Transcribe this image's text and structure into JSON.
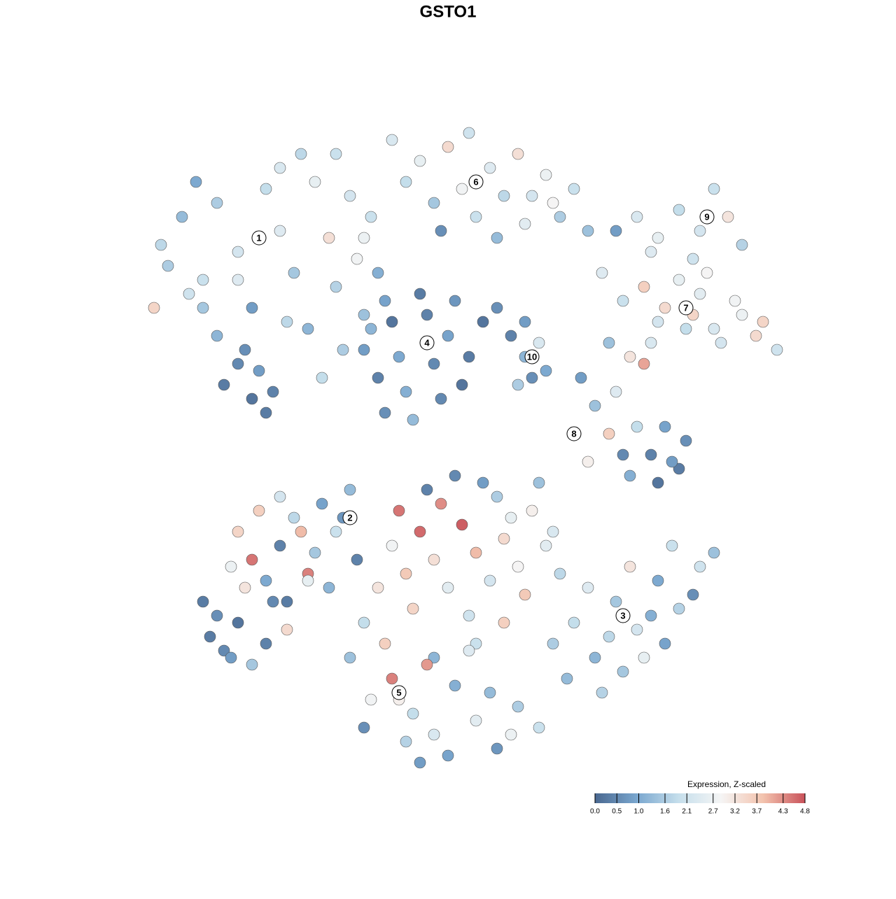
{
  "chart_data": {
    "type": "scatter",
    "title": "GSTO1",
    "colorbar_title": "Expression, Z-scaled",
    "colorscale": [
      "#4a6890",
      "#7aa7cf",
      "#c6dfec",
      "#f5f5f5",
      "#f3c3ae",
      "#c9525a"
    ],
    "clim": [
      0,
      4.8
    ],
    "cticks": [
      {
        "value": 0,
        "label": "0.0"
      },
      0.5,
      {
        "value": 1,
        "label": "1.0"
      },
      1.6,
      2.1,
      2.7,
      3.2,
      3.7,
      4.3,
      4.8
    ],
    "x": [
      -41,
      -38,
      -35,
      -33,
      -30,
      -28,
      -26,
      -24,
      -22,
      -20,
      -19,
      -17,
      -16,
      -14,
      -13,
      -12,
      -11,
      -10,
      -18,
      -15,
      -32,
      -30,
      -28,
      -27,
      -25,
      -33,
      -35,
      -29,
      -26,
      -23,
      -37,
      -40,
      -42,
      -36,
      -21,
      -24,
      -16,
      -12,
      -9,
      -30,
      -8,
      -6,
      -4,
      -2,
      0,
      2,
      4,
      6,
      8,
      10,
      12,
      14,
      16,
      18,
      20,
      -1,
      3,
      7,
      11,
      15,
      -12,
      -10,
      -8,
      -6,
      -4,
      -2,
      0,
      2,
      -9,
      -5,
      -3,
      1,
      -7,
      -11,
      3,
      -1,
      5,
      7,
      9,
      11,
      11,
      12,
      13,
      14,
      10,
      19,
      21,
      23,
      25,
      27,
      29,
      31,
      33,
      26,
      30,
      34,
      24,
      28,
      32,
      20,
      24,
      27,
      30,
      33,
      36,
      38,
      40,
      42,
      35,
      29,
      22,
      25,
      28,
      30,
      33,
      35,
      38,
      41,
      44,
      47,
      31,
      34,
      36,
      39,
      42,
      26,
      29,
      45,
      23,
      37,
      -30,
      -28,
      -26,
      -24,
      -22,
      -20,
      -18,
      -16,
      -14,
      -25,
      -31,
      -27,
      -23,
      -19,
      -15,
      -21,
      -29,
      -17,
      -13,
      -24,
      -34,
      -32,
      -30,
      -28,
      -26,
      -23,
      -33,
      -31,
      -35,
      -20,
      -8,
      -6,
      -4,
      -2,
      0,
      2,
      4,
      6,
      8,
      10,
      12,
      14,
      16,
      -5,
      -1,
      3,
      7,
      11,
      15,
      1,
      -3,
      5,
      9,
      -7,
      13,
      -10,
      -12,
      8,
      4,
      -2,
      15,
      18,
      21,
      24,
      27,
      30,
      33,
      36,
      38,
      17,
      20,
      23,
      26,
      29,
      32,
      35,
      25,
      31,
      22,
      28,
      -14,
      -11,
      -8,
      -5,
      -2,
      1,
      4,
      7,
      10,
      13,
      -12,
      -9,
      -6,
      -3,
      0,
      3,
      6,
      9,
      -7,
      -4
    ],
    "y": [
      29,
      33,
      24,
      35,
      28,
      20,
      37,
      31,
      25,
      17,
      38,
      30,
      23,
      36,
      27,
      19,
      33,
      25,
      10,
      14,
      9,
      12,
      7,
      11,
      8,
      16,
      20,
      14,
      5,
      18,
      22,
      26,
      20,
      38,
      42,
      40,
      42,
      30,
      21,
      24,
      44,
      38,
      41,
      35,
      43,
      37,
      33,
      40,
      36,
      42,
      36,
      39,
      33,
      37,
      31,
      31,
      45,
      30,
      32,
      35,
      14,
      10,
      18,
      8,
      22,
      12,
      16,
      9,
      5,
      4,
      19,
      21,
      13,
      17,
      13,
      7,
      18,
      20,
      16,
      18,
      13,
      10,
      15,
      11,
      9,
      10,
      6,
      2,
      -1,
      3,
      -1,
      3,
      -3,
      -4,
      -5,
      1,
      8,
      12,
      -2,
      -2,
      31,
      33,
      30,
      34,
      31,
      37,
      33,
      29,
      27,
      28,
      25,
      21,
      23,
      18,
      24,
      19,
      17,
      21,
      16,
      14,
      20,
      17,
      22,
      15,
      19,
      13,
      15,
      18,
      15,
      25,
      -12,
      -16,
      -19,
      -14,
      -10,
      -18,
      -8,
      -12,
      -6,
      -22,
      -17,
      -9,
      -22,
      -15,
      -10,
      -12,
      -20,
      -20,
      -16,
      -7,
      -27,
      -29,
      -25,
      -31,
      -28,
      -26,
      -24,
      -30,
      -22,
      -19,
      -14,
      -18,
      -12,
      -16,
      -20,
      -11,
      -15,
      -19,
      -13,
      -17,
      -9,
      -14,
      -18,
      -23,
      -8,
      -24,
      -7,
      -21,
      -12,
      -4,
      -6,
      -5,
      -10,
      -9,
      -5,
      -20,
      -25,
      -25,
      -28,
      -30,
      -28,
      -25,
      -30,
      -22,
      -26,
      -19,
      -23,
      -17,
      -15,
      -33,
      -20,
      -27,
      -17,
      -24,
      -14,
      -21,
      -32,
      -28,
      -35,
      -30,
      -30,
      -36,
      -33,
      -38,
      -41,
      -34,
      -39,
      -43,
      -37,
      -40,
      -40,
      -28,
      -42,
      -31,
      -44,
      -29,
      -35,
      -41,
      -36,
      -45
    ],
    "values": [
      1.8,
      1.3,
      2.0,
      1.6,
      2.2,
      0.8,
      1.9,
      2.4,
      1.5,
      1.2,
      2.6,
      3.3,
      1.7,
      2.2,
      2.8,
      1.4,
      2.0,
      1.1,
      1.9,
      1.6,
      0.3,
      0.5,
      0.2,
      0.8,
      0.4,
      1.2,
      1.5,
      0.6,
      0.3,
      1.8,
      2.1,
      1.6,
      3.5,
      1.0,
      1.8,
      2.3,
      2.0,
      2.7,
      0.9,
      2.4,
      2.3,
      1.9,
      2.6,
      1.5,
      3.4,
      2.8,
      2.0,
      2.4,
      1.8,
      3.3,
      2.2,
      2.7,
      1.6,
      2.0,
      1.4,
      0.6,
      2.1,
      1.3,
      2.5,
      2.9,
      0.8,
      0.4,
      0.2,
      1.1,
      0.3,
      0.5,
      0.9,
      0.2,
      0.6,
      1.3,
      0.4,
      0.7,
      1.0,
      1.2,
      0.3,
      0.5,
      0.2,
      0.6,
      0.4,
      0.8,
      1.2,
      0.6,
      2.3,
      1.0,
      1.6,
      0.8,
      1.4,
      3.6,
      0.5,
      1.9,
      0.4,
      0.9,
      0.3,
      1.1,
      0.2,
      0.6,
      2.4,
      4.1,
      0.8,
      3.0,
      0.8,
      2.3,
      2.6,
      1.9,
      2.2,
      2.0,
      3.2,
      1.7,
      2.1,
      2.4,
      2.4,
      2.0,
      3.6,
      2.2,
      2.6,
      3.5,
      2.3,
      2.8,
      3.4,
      2.1,
      3.4,
      1.9,
      2.5,
      2.2,
      2.7,
      3.2,
      2.3,
      3.5,
      1.4,
      2.9,
      3.5,
      4.5,
      1.0,
      0.4,
      1.8,
      4.4,
      0.9,
      2.0,
      1.3,
      0.5,
      2.7,
      3.6,
      0.3,
      1.5,
      0.7,
      3.9,
      3.2,
      1.2,
      0.4,
      2.2,
      0.3,
      0.5,
      0.2,
      1.5,
      0.4,
      3.4,
      0.6,
      0.8,
      0.3,
      2.6,
      2.8,
      3.7,
      4.6,
      3.3,
      2.5,
      4.7,
      3.9,
      2.2,
      3.4,
      2.9,
      3.0,
      2.5,
      1.8,
      3.5,
      4.3,
      2.1,
      1.6,
      3.7,
      2.3,
      0.5,
      0.4,
      0.8,
      2.6,
      4.5,
      1.4,
      3.2,
      1.9,
      3.6,
      2.0,
      1.2,
      1.6,
      1.9,
      1.2,
      1.5,
      2.2,
      1.0,
      1.7,
      2.1,
      1.4,
      1.3,
      2.4,
      1.8,
      3.2,
      1.1,
      2.0,
      0.6,
      1.5,
      0.9,
      1.7,
      2.6,
      1.4,
      2.8,
      4.4,
      1.9,
      2.3,
      1.1,
      2.5,
      0.7,
      1.6,
      2.0,
      0.6,
      3.6,
      1.7,
      4.2,
      0.9,
      2.4,
      1.3,
      2.7,
      3.0,
      0.8
    ],
    "clusters": [
      {
        "label": "1",
        "x": -27,
        "y": 30
      },
      {
        "label": "2",
        "x": -14,
        "y": -10
      },
      {
        "label": "3",
        "x": 25,
        "y": -24
      },
      {
        "label": "4",
        "x": -3,
        "y": 15
      },
      {
        "label": "5",
        "x": -7,
        "y": -35
      },
      {
        "label": "6",
        "x": 4,
        "y": 38
      },
      {
        "label": "7",
        "x": 34,
        "y": 20
      },
      {
        "label": "8",
        "x": 18,
        "y": 2
      },
      {
        "label": "9",
        "x": 37,
        "y": 33
      },
      {
        "label": "10",
        "x": 12,
        "y": 13
      }
    ]
  }
}
